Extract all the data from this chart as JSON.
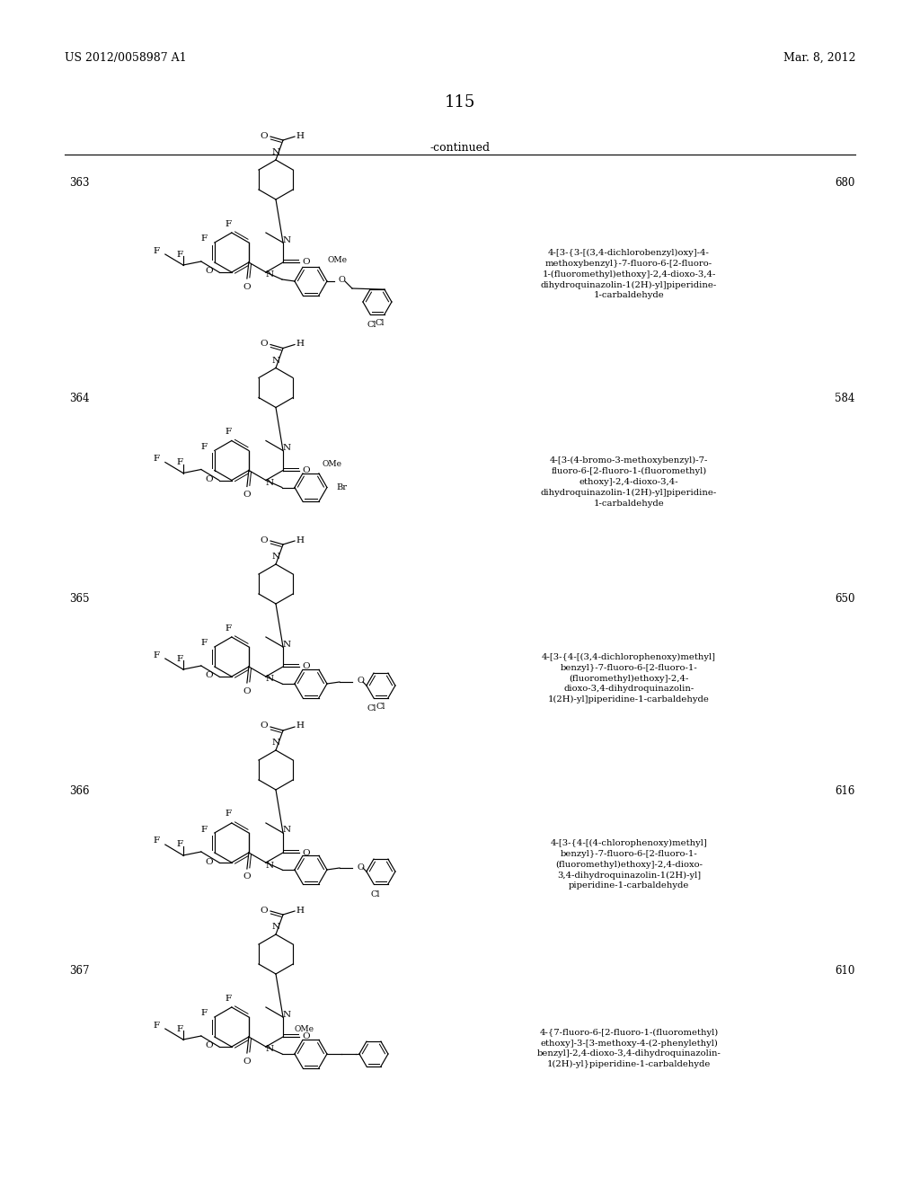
{
  "page_number": "115",
  "header_left": "US 2012/0058987 A1",
  "header_right": "Mar. 8, 2012",
  "continued_text": "-continued",
  "background_color": "#ffffff",
  "text_color": "#000000",
  "entries": [
    {
      "number": "363",
      "mw": "680",
      "name": "4-[3-{3-[(3,4-dichlorobenzyl)oxy]-4-\nmethoxybenzyl}-7-fluoro-6-[2-fluoro-\n1-(fluoromethyl)ethoxy]-2,4-dioxo-3,4-\ndihydroquinazolin-1(2H)-yl]piperidine-\n1-carbaldehyde"
    },
    {
      "number": "364",
      "mw": "584",
      "name": "4-[3-(4-bromo-3-methoxybenzyl)-7-\nfluoro-6-[2-fluoro-1-(fluoromethyl)\nethoxy]-2,4-dioxo-3,4-\ndihydroquinazolin-1(2H)-yl]piperidine-\n1-carbaldehyde"
    },
    {
      "number": "365",
      "mw": "650",
      "name": "4-[3-{4-[(3,4-dichlorophenoxy)methyl]\nbenzyl}-7-fluoro-6-[2-fluoro-1-\n(fluoromethyl)ethoxy]-2,4-\ndioxo-3,4-dihydroquinazolin-\n1(2H)-yl]piperidine-1-carbaldehyde"
    },
    {
      "number": "366",
      "mw": "616",
      "name": "4-[3-{4-[(4-chlorophenoxy)methyl]\nbenzyl}-7-fluoro-6-[2-fluoro-1-\n(fluoromethyl)ethoxy]-2,4-dioxo-\n3,4-dihydroquinazolin-1(2H)-yl]\npiperidine-1-carbaldehyde"
    },
    {
      "number": "367",
      "mw": "610",
      "name": "4-{7-fluoro-6-[2-fluoro-1-(fluoromethyl)\nethoxy]-3-[3-methoxy-4-(2-phenylethyl)\nbenzyl]-2,4-dioxo-3,4-dihydroquinazolin-\n1(2H)-yl}piperidine-1-carbaldehyde"
    }
  ],
  "row_tops": [
    185,
    425,
    648,
    862,
    1062
  ],
  "row_bottoms": [
    425,
    648,
    862,
    1062,
    1272
  ]
}
